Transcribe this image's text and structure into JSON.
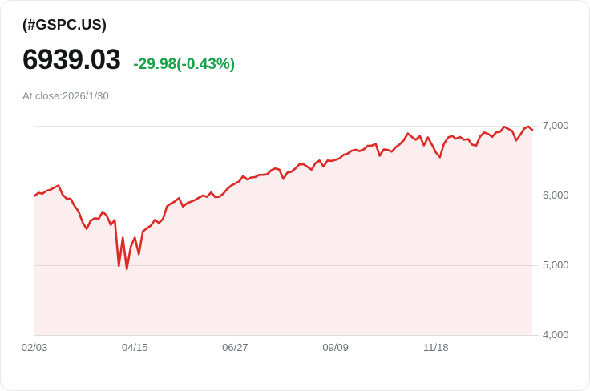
{
  "card": {
    "symbol": "(#GSPC.US)",
    "price": "6939.03",
    "change": "-29.98(-0.43%)",
    "close_note": "At close:2026/1/30"
  },
  "colors": {
    "change_green": "#17a24b",
    "line_red": "#dc2a27",
    "area_fill": "rgba(220,42,39,0.08)",
    "grid_line": "#e7e7e7",
    "axis_line": "#dcdcdc",
    "axis_text": "#6d7177"
  },
  "chart_data": {
    "type": "area",
    "title": "#GSPC.US daily close, 02/03/2025 - 01/30/2026",
    "xlabel": "",
    "ylabel": "",
    "grid": "horizontal",
    "legend": "none",
    "x_unit": "trading days, about 2 days per point",
    "x_tick_labels": [
      "02/03",
      "04/15",
      "06/27",
      "09/09",
      "11/18"
    ],
    "x_tick_indices": [
      0,
      25,
      50,
      75,
      100
    ],
    "y_tick_labels": [
      "7,000",
      "6,000",
      "5,000",
      "4,000"
    ],
    "y_ticks": [
      7000,
      6000,
      5000,
      4000
    ],
    "ylim": [
      4000,
      7184
    ],
    "values": [
      5995,
      6038,
      6026,
      6068,
      6084,
      6115,
      6144,
      6013,
      5955,
      5954,
      5850,
      5770,
      5614,
      5521,
      5638,
      5675,
      5667,
      5767,
      5712,
      5581,
      5650,
      4990,
      5395,
      4945,
      5268,
      5397,
      5158,
      5485,
      5529,
      5569,
      5650,
      5607,
      5664,
      5844,
      5886,
      5916,
      5963,
      5842,
      5888,
      5912,
      5936,
      5970,
      6000,
      5982,
      6045,
      5977,
      5982,
      6025,
      6092,
      6141,
      6173,
      6205,
      6279,
      6230,
      6259,
      6264,
      6297,
      6297,
      6306,
      6363,
      6389,
      6371,
      6238,
      6329,
      6340,
      6389,
      6446,
      6450,
      6411,
      6370,
      6466,
      6501,
      6415,
      6502,
      6495,
      6512,
      6532,
      6584,
      6600,
      6642,
      6656,
      6637,
      6661,
      6711,
      6715,
      6740,
      6570,
      6660,
      6654,
      6629,
      6692,
      6735,
      6792,
      6890,
      6840,
      6800,
      6852,
      6720,
      6833,
      6730,
      6617,
      6550,
      6740,
      6830,
      6855,
      6815,
      6840,
      6800,
      6810,
      6730,
      6715,
      6845,
      6905,
      6885,
      6840,
      6905,
      6915,
      6985,
      6955,
      6925,
      6790,
      6870,
      6960,
      6990,
      6939.03
    ]
  }
}
